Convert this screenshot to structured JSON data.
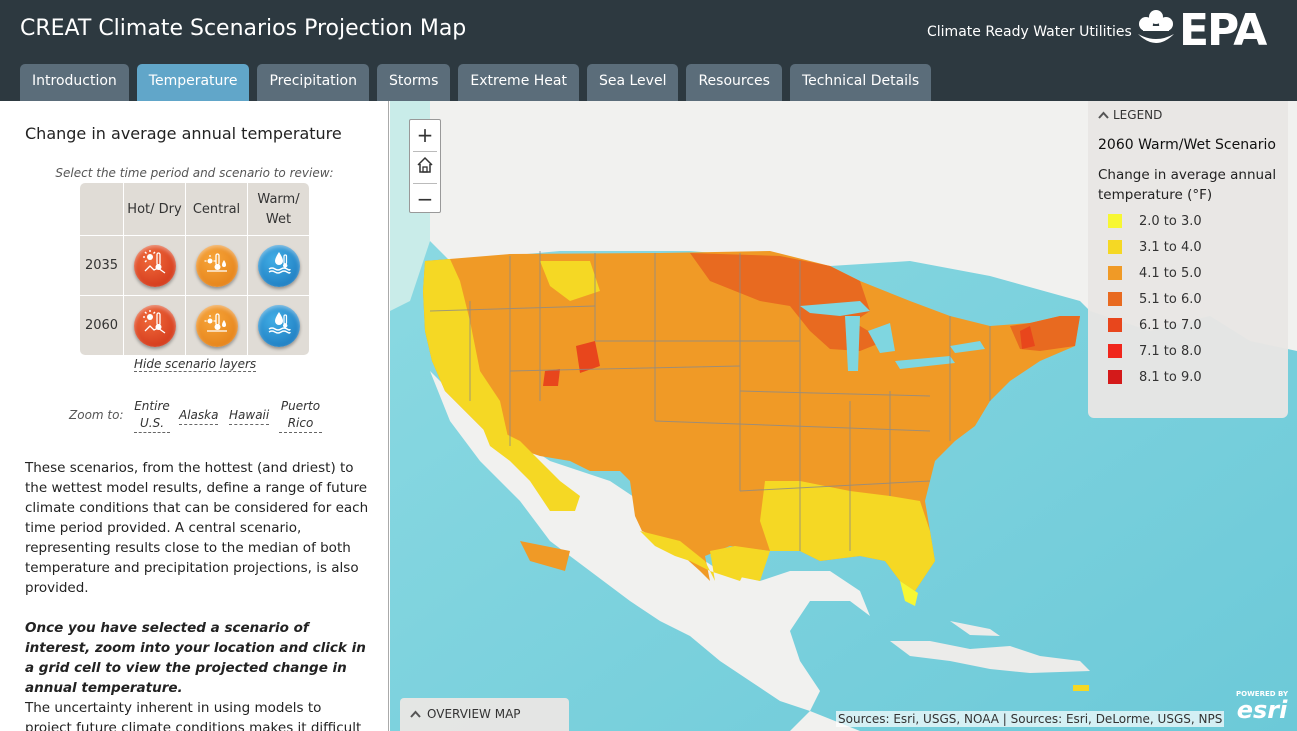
{
  "header": {
    "title": "CREAT Climate Scenarios Projection Map",
    "subtitle": "Climate Ready Water Utilities",
    "logo_text": "EPA",
    "logo_icon": "epa-flower-icon",
    "background_color": "#2d3940"
  },
  "tabs": [
    {
      "label": "Introduction",
      "active": false
    },
    {
      "label": "Temperature",
      "active": true
    },
    {
      "label": "Precipitation",
      "active": false
    },
    {
      "label": "Storms",
      "active": false
    },
    {
      "label": "Extreme Heat",
      "active": false
    },
    {
      "label": "Sea Level",
      "active": false
    },
    {
      "label": "Resources",
      "active": false
    },
    {
      "label": "Technical Details",
      "active": false
    }
  ],
  "side": {
    "title": "Change in average annual temperature",
    "select_prompt": "Select the time period and scenario to review:",
    "scenario_grid": {
      "columns": [
        "Hot/ Dry",
        "Central",
        "Warm/ Wet"
      ],
      "rows": [
        "2035",
        "2060"
      ],
      "button_icons": [
        "hot-dry-icon",
        "central-icon",
        "warm-wet-icon"
      ],
      "button_colors": [
        "#cc2d14",
        "#e07a12",
        "#1571b8"
      ]
    },
    "hide_layers": "Hide scenario layers",
    "zoom_label": "Zoom to:",
    "zoom_links": [
      "Entire U.S.",
      "Alaska",
      "Hawaii",
      "Puerto Rico"
    ],
    "para1": "These scenarios, from the hottest (and driest) to the wettest model results, define a range of future climate conditions that can be considered for each time period provided. A central scenario, representing results close to the median of both temperature and precipitation projections, is also provided.",
    "para2": "Once you have selected a scenario of interest, zoom into your location and click in a grid cell to view the projected change in annual temperature.",
    "para3": "The uncertainty inherent in using models to project future climate conditions makes it difficult to"
  },
  "map": {
    "zoom_in": "+",
    "zoom_out": "−",
    "home_icon": "home-icon",
    "legend": {
      "header": "LEGEND",
      "title": "2060 Warm/Wet Scenario",
      "subtitle": "Change in average annual temperature (°F)",
      "items": [
        {
          "label": "2.0 to 3.0",
          "color": "#f7f733"
        },
        {
          "label": "3.1 to 4.0",
          "color": "#f5d824"
        },
        {
          "label": "4.1 to 5.0",
          "color": "#f09a26"
        },
        {
          "label": "5.1 to 6.0",
          "color": "#e86a20"
        },
        {
          "label": "6.1 to 7.0",
          "color": "#e8461c"
        },
        {
          "label": "7.1 to 8.0",
          "color": "#f0261c"
        },
        {
          "label": "8.1 to 9.0",
          "color": "#d41a1a"
        }
      ]
    },
    "overview": "OVERVIEW MAP",
    "attribution": "Sources: Esri, USGS, NOAA | Sources: Esri, DeLorme, USGS, NPS",
    "esri_small": "POWERED BY",
    "esri_big": "esri"
  }
}
